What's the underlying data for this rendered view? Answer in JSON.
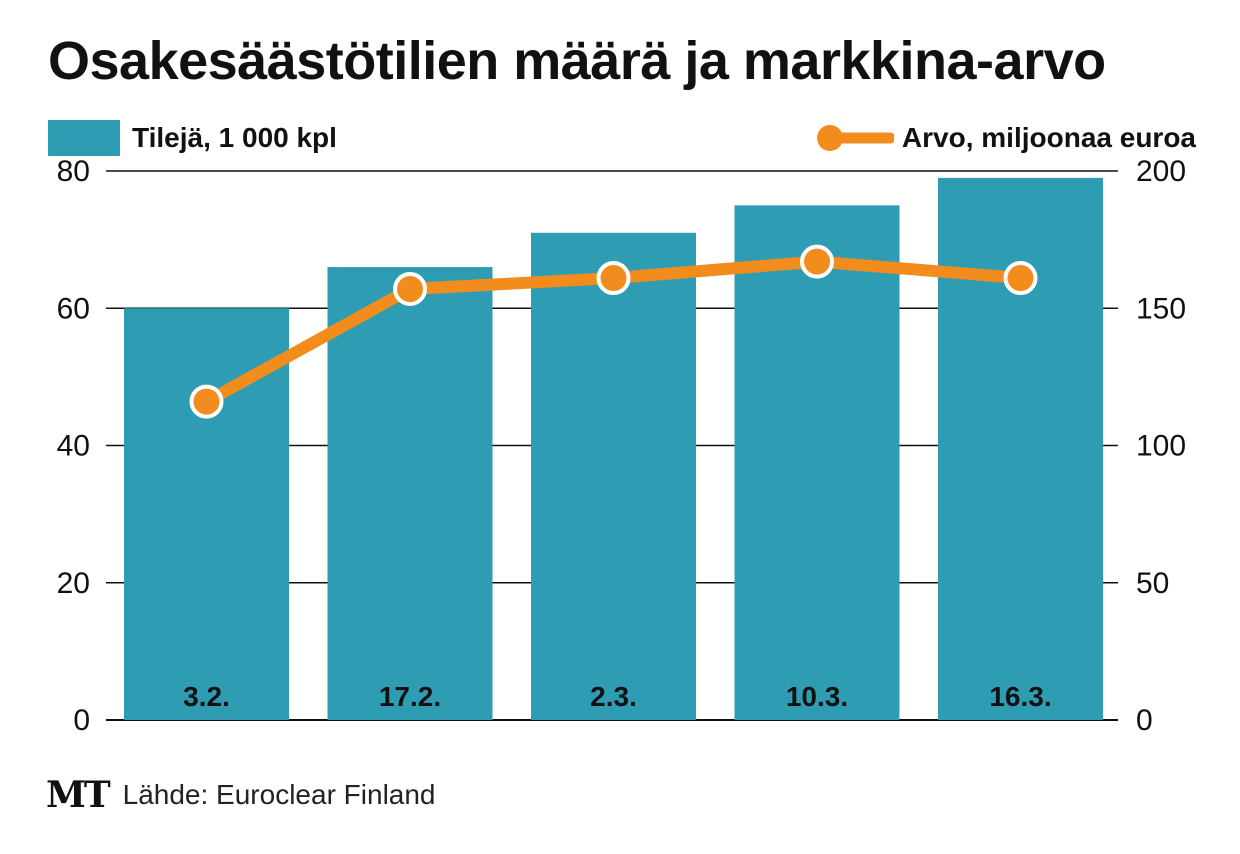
{
  "chart_data": {
    "type": "bar",
    "title": "Osakesäästötilien määrä ja markkina-arvo",
    "categories": [
      "3.2.",
      "17.2.",
      "2.3.",
      "10.3.",
      "16.3."
    ],
    "series": [
      {
        "name": "Tilejä, 1 000 kpl",
        "type": "bar",
        "axis": "left",
        "values": [
          60,
          66,
          71,
          75,
          79
        ]
      },
      {
        "name": "Arvo, miljoonaa euroa",
        "type": "line",
        "axis": "right",
        "values": [
          116,
          157,
          161,
          167,
          161
        ]
      }
    ],
    "y_left": {
      "min": 0,
      "max": 80,
      "ticks": [
        0,
        20,
        40,
        60,
        80
      ]
    },
    "y_right": {
      "min": 0,
      "max": 200,
      "ticks": [
        0,
        50,
        100,
        150,
        200
      ]
    },
    "grid": true,
    "legend_placement": "top",
    "colors": {
      "bar": "#2e9db3",
      "line": "#f28c1c",
      "marker_fill": "#f28c1c",
      "marker_stroke": "#ffffff",
      "grid": "#111111"
    }
  },
  "legend": {
    "bars_label": "Tilejä, 1 000 kpl",
    "line_label": "Arvo, miljoonaa euroa"
  },
  "footer": {
    "logo": "MT",
    "source": "Lähde: Euroclear Finland"
  }
}
